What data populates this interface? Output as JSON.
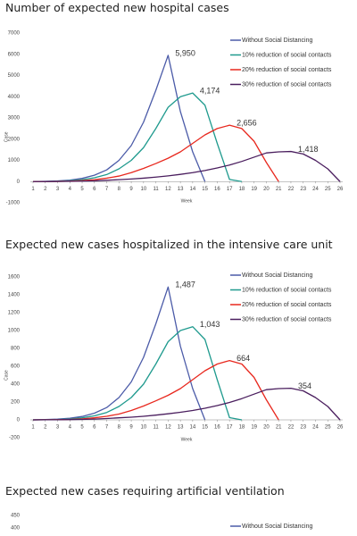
{
  "chart_data": [
    {
      "type": "line",
      "title": "Number of expected new hospital cases",
      "ylabel": "Case",
      "xlabel": "Week",
      "x": [
        1,
        2,
        3,
        4,
        5,
        6,
        7,
        8,
        9,
        10,
        11,
        12,
        13,
        14,
        15,
        16,
        17,
        18,
        19,
        20,
        21,
        22,
        23,
        24,
        25,
        26
      ],
      "xlim": [
        1,
        26
      ],
      "xticks": [
        1,
        2,
        3,
        4,
        5,
        6,
        7,
        8,
        9,
        10,
        11,
        12,
        13,
        14,
        15,
        16,
        17,
        18,
        19,
        20,
        21,
        22,
        23,
        24,
        25,
        26
      ],
      "ylim": [
        -1000,
        7000
      ],
      "yticks": [
        -1000,
        0,
        1000,
        2000,
        3000,
        4000,
        5000,
        6000,
        7000
      ],
      "series": [
        {
          "name": "Without Social Distancing",
          "color": "#4b5ba8",
          "values": [
            0,
            10,
            30,
            70,
            150,
            300,
            550,
            1000,
            1700,
            2800,
            4300,
            5950,
            3300,
            1400,
            0,
            null,
            null,
            null,
            null,
            null,
            null,
            null,
            null,
            null,
            null,
            null
          ]
        },
        {
          "name": "10% reduction of social contacts",
          "color": "#1f9a8e",
          "values": [
            0,
            5,
            15,
            40,
            90,
            180,
            330,
            600,
            1000,
            1600,
            2500,
            3500,
            4000,
            4174,
            3600,
            1800,
            100,
            0,
            null,
            null,
            null,
            null,
            null,
            null,
            null,
            null
          ]
        },
        {
          "name": "20% reduction of social contacts",
          "color": "#e8281e",
          "values": [
            0,
            3,
            8,
            20,
            45,
            90,
            160,
            260,
            420,
            620,
            850,
            1100,
            1400,
            1800,
            2200,
            2500,
            2656,
            2500,
            1900,
            900,
            0,
            null,
            null,
            null,
            null,
            null
          ]
        },
        {
          "name": "30% reduction of social contacts",
          "color": "#4a1e5e",
          "values": [
            0,
            2,
            5,
            10,
            20,
            35,
            60,
            90,
            120,
            160,
            210,
            270,
            340,
            420,
            520,
            640,
            780,
            950,
            1150,
            1350,
            1400,
            1418,
            1300,
            1000,
            600,
            0
          ]
        }
      ],
      "annotations": [
        {
          "x": 12,
          "y": 5950,
          "label": "5,950"
        },
        {
          "x": 14,
          "y": 4174,
          "label": "4,174"
        },
        {
          "x": 17,
          "y": 2656,
          "label": "2,656"
        },
        {
          "x": 22,
          "y": 1418,
          "label": "1,418"
        }
      ]
    },
    {
      "type": "line",
      "title": "Expected new cases hospitalized in the intensive care unit",
      "ylabel": "Case",
      "xlabel": "Week",
      "x": [
        1,
        2,
        3,
        4,
        5,
        6,
        7,
        8,
        9,
        10,
        11,
        12,
        13,
        14,
        15,
        16,
        17,
        18,
        19,
        20,
        21,
        22,
        23,
        24,
        25,
        26
      ],
      "xlim": [
        1,
        26
      ],
      "xticks": [
        1,
        2,
        3,
        4,
        5,
        6,
        7,
        8,
        9,
        10,
        11,
        12,
        13,
        14,
        15,
        16,
        17,
        18,
        19,
        20,
        21,
        22,
        23,
        24,
        25,
        26
      ],
      "ylim": [
        -200,
        1600
      ],
      "yticks": [
        -200,
        0,
        200,
        400,
        600,
        800,
        1000,
        1200,
        1400,
        1600
      ],
      "series": [
        {
          "name": "Without Social Distancing",
          "color": "#4b5ba8",
          "values": [
            0,
            3,
            8,
            18,
            38,
            75,
            138,
            250,
            425,
            700,
            1075,
            1487,
            825,
            350,
            0,
            null,
            null,
            null,
            null,
            null,
            null,
            null,
            null,
            null,
            null,
            null
          ]
        },
        {
          "name": "10% reduction of social contacts",
          "color": "#1f9a8e",
          "values": [
            0,
            1,
            4,
            10,
            23,
            45,
            83,
            150,
            250,
            400,
            625,
            875,
            1000,
            1043,
            900,
            450,
            25,
            0,
            null,
            null,
            null,
            null,
            null,
            null,
            null,
            null
          ]
        },
        {
          "name": "20% reduction of social contacts",
          "color": "#e8281e",
          "values": [
            0,
            1,
            2,
            5,
            11,
            23,
            40,
            65,
            105,
            155,
            213,
            275,
            350,
            450,
            550,
            625,
            664,
            625,
            475,
            225,
            0,
            null,
            null,
            null,
            null,
            null
          ]
        },
        {
          "name": "30% reduction of social contacts",
          "color": "#4a1e5e",
          "values": [
            0,
            1,
            1,
            3,
            5,
            9,
            15,
            23,
            30,
            40,
            53,
            68,
            85,
            105,
            130,
            160,
            195,
            238,
            288,
            338,
            350,
            354,
            325,
            250,
            150,
            0
          ]
        }
      ],
      "annotations": [
        {
          "x": 12,
          "y": 1487,
          "label": "1,487"
        },
        {
          "x": 14,
          "y": 1043,
          "label": "1,043"
        },
        {
          "x": 17,
          "y": 664,
          "label": "664"
        },
        {
          "x": 22,
          "y": 354,
          "label": "354"
        }
      ]
    },
    {
      "type": "line",
      "title": "Expected new cases requiring artificial ventilation",
      "ylim": [
        -50,
        450
      ],
      "yticks": [
        400,
        450
      ],
      "series": [
        {
          "name": "Without Social Distancing",
          "color": "#4b5ba8"
        }
      ]
    }
  ]
}
